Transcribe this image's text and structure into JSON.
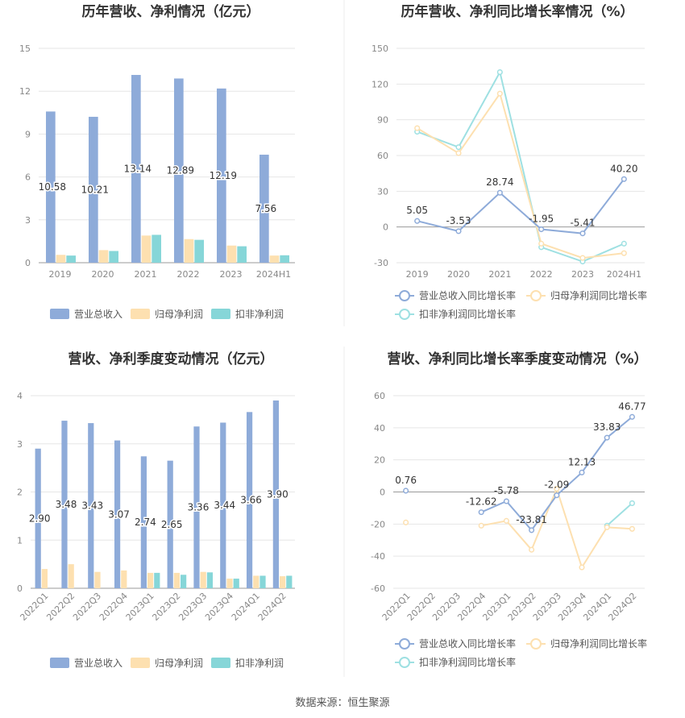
{
  "colors": {
    "revenue": "#8eabd9",
    "parent_profit": "#fde0b0",
    "deducted_profit": "#86d6d8",
    "rev_line": "#8eabd9",
    "parent_line": "#fde0b0",
    "deducted_line": "#9ee0e2",
    "axis_text": "#888888",
    "title": "#333333",
    "grid": "#e6e6e6",
    "divider": "#ececec"
  },
  "footer": {
    "source": "数据来源：恒生聚源"
  },
  "chart_data": [
    {
      "type": "bar",
      "title": "历年营收、净利情况（亿元）",
      "categories": [
        "2019",
        "2020",
        "2021",
        "2022",
        "2023",
        "2024H1"
      ],
      "ylim": [
        0,
        15
      ],
      "yticks": [
        "0",
        "3",
        "6",
        "9",
        "12",
        "15"
      ],
      "yticks_values": [
        0,
        3,
        6,
        9,
        12,
        15
      ],
      "series": [
        {
          "name": "营业总收入",
          "values": [
            10.58,
            10.21,
            13.14,
            12.89,
            12.19,
            7.56
          ],
          "labels": [
            "10.58",
            "10.21",
            "13.14",
            "12.89",
            "12.19",
            "7.56"
          ]
        },
        {
          "name": "归母净利润",
          "values": [
            0.55,
            0.88,
            1.9,
            1.65,
            1.2,
            0.5
          ]
        },
        {
          "name": "扣非净利润",
          "values": [
            0.5,
            0.82,
            1.95,
            1.6,
            1.15,
            0.52
          ]
        }
      ],
      "legend": "bottom"
    },
    {
      "type": "line",
      "title": "历年营收、净利同比增长率情况（%）",
      "categories": [
        "2019",
        "2020",
        "2021",
        "2022",
        "2023",
        "2024H1"
      ],
      "ylim": [
        -30,
        150
      ],
      "yticks": [
        "-30",
        "0",
        "30",
        "60",
        "90",
        "120",
        "150"
      ],
      "yticks_values": [
        -30,
        0,
        30,
        60,
        90,
        120,
        150
      ],
      "series": [
        {
          "name": "营业总收入同比增长率",
          "values": [
            5.05,
            -3.53,
            28.74,
            -1.95,
            -5.41,
            40.2
          ],
          "labels": [
            "5.05",
            "-3.53",
            "28.74",
            "-1.95",
            "-5.41",
            "40.20"
          ]
        },
        {
          "name": "归母净利润同比增长率",
          "values": [
            83,
            62,
            112,
            -14,
            -26,
            -22
          ]
        },
        {
          "name": "扣非净利润同比增长率",
          "values": [
            80,
            67,
            130,
            -17,
            -29,
            -14
          ]
        }
      ],
      "legend": "bottom"
    },
    {
      "type": "bar",
      "title": "营收、净利季度变动情况（亿元）",
      "categories": [
        "2022Q1",
        "2022Q2",
        "2022Q3",
        "2022Q4",
        "2023Q1",
        "2023Q2",
        "2023Q3",
        "2023Q4",
        "2024Q1",
        "2024Q2"
      ],
      "ylim": [
        0,
        4
      ],
      "yticks": [
        "0",
        "1",
        "2",
        "3",
        "4"
      ],
      "yticks_values": [
        0,
        1,
        2,
        3,
        4
      ],
      "series": [
        {
          "name": "营业总收入",
          "values": [
            2.9,
            3.48,
            3.43,
            3.07,
            2.74,
            2.65,
            3.36,
            3.44,
            3.66,
            3.9
          ],
          "labels": [
            "2.90",
            "3.48",
            "3.43",
            "3.07",
            "2.74",
            "2.65",
            "3.36",
            "3.44",
            "3.66",
            "3.90"
          ]
        },
        {
          "name": "归母净利润",
          "values": [
            0.4,
            0.5,
            0.34,
            0.37,
            0.32,
            0.32,
            0.34,
            0.2,
            0.26,
            0.25
          ]
        },
        {
          "name": "扣非净利润",
          "values": [
            null,
            null,
            null,
            null,
            0.32,
            0.28,
            0.33,
            0.2,
            0.26,
            0.26
          ]
        }
      ],
      "legend": "bottom"
    },
    {
      "type": "line",
      "title": "营收、净利同比增长率季度变动情况（%）",
      "categories": [
        "2022Q1",
        "2022Q2",
        "2022Q3",
        "2022Q4",
        "2023Q1",
        "2023Q2",
        "2023Q3",
        "2023Q4",
        "2024Q1",
        "2024Q2"
      ],
      "ylim": [
        -60,
        60
      ],
      "yticks": [
        "-60",
        "-40",
        "-20",
        "0",
        "20",
        "40",
        "60"
      ],
      "yticks_values": [
        -60,
        -40,
        -20,
        0,
        20,
        40,
        60
      ],
      "series": [
        {
          "name": "营业总收入同比增长率",
          "values": [
            0.76,
            null,
            null,
            -12.62,
            -5.78,
            -23.81,
            -2.09,
            12.13,
            33.83,
            46.77
          ],
          "labels": [
            "0.76",
            "",
            "",
            "-12.62",
            "-5.78",
            "-23.81",
            "-2.09",
            "12.13",
            "33.83",
            "46.77"
          ]
        },
        {
          "name": "归母净利润同比增长率",
          "values": [
            -19,
            null,
            null,
            -21,
            -18,
            -36,
            2,
            -47,
            -22,
            -23
          ]
        },
        {
          "name": "扣非净利润同比增长率",
          "values": [
            null,
            null,
            null,
            null,
            null,
            null,
            null,
            null,
            -21,
            -7
          ]
        }
      ],
      "legend": "bottom"
    }
  ]
}
